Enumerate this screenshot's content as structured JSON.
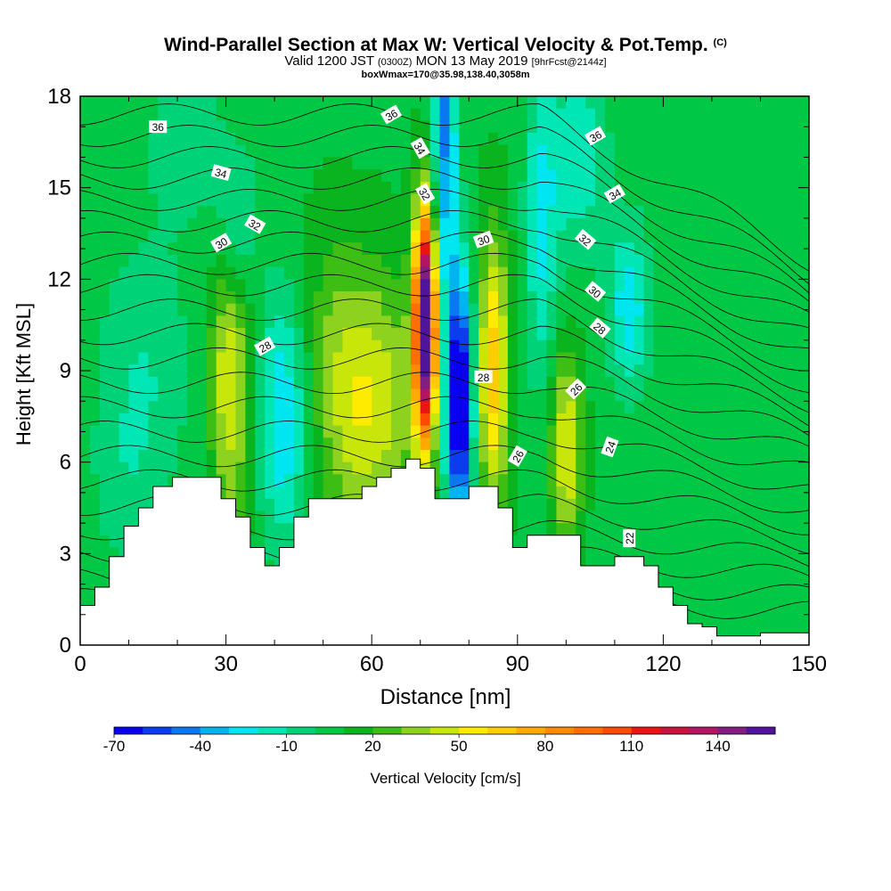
{
  "header": {
    "title": "Wind-Parallel Section at Max W: Vertical Velocity & Pot.Temp.",
    "title_mark": "(C)",
    "subtitle_a": "Valid 1200 JST",
    "subtitle_b": "(0300Z)",
    "subtitle_c": "MON 13 May 2019",
    "subtitle_d": "[9hrFcst@2144z]",
    "info": "boxWmax=170@35.98,138.40,3058m"
  },
  "chart_data": {
    "type": "heatmap",
    "xlabel": "Distance [nm]",
    "ylabel": "Height [Kft MSL]",
    "xlim": [
      0,
      150
    ],
    "ylim": [
      0,
      18
    ],
    "x_ticks": [
      "0",
      "30",
      "60",
      "90",
      "120",
      "150"
    ],
    "y_ticks": [
      "0",
      "3",
      "6",
      "9",
      "12",
      "15",
      "18"
    ],
    "colorbar": {
      "title": "Vertical Velocity [cm/s]",
      "labels": [
        "-70",
        "-40",
        "-10",
        "20",
        "50",
        "80",
        "110",
        "140"
      ],
      "levels": [
        -70,
        -60,
        -50,
        -40,
        -30,
        -20,
        -10,
        0,
        10,
        20,
        30,
        40,
        50,
        60,
        70,
        80,
        90,
        100,
        110,
        120,
        130,
        140,
        150
      ],
      "colors": [
        "#0a00f0",
        "#0a3cf0",
        "#0a78f0",
        "#00b4f0",
        "#00e6f0",
        "#00e6b4",
        "#00d278",
        "#00c845",
        "#0ab41e",
        "#3cbe14",
        "#8cd21e",
        "#c8e60a",
        "#ffeb00",
        "#ffcd00",
        "#ffaa00",
        "#ff8c00",
        "#ff6e00",
        "#ff4b00",
        "#eb1414",
        "#c8143c",
        "#b41464",
        "#821e82",
        "#50149b"
      ]
    },
    "terrain": [
      [
        0,
        1.3
      ],
      [
        3,
        1.3
      ],
      [
        3,
        1.9
      ],
      [
        6,
        1.9
      ],
      [
        6,
        2.9
      ],
      [
        9,
        2.9
      ],
      [
        9,
        3.9
      ],
      [
        12,
        3.9
      ],
      [
        12,
        4.5
      ],
      [
        15,
        4.5
      ],
      [
        15,
        5.2
      ],
      [
        19,
        5.2
      ],
      [
        19,
        5.5
      ],
      [
        29,
        5.5
      ],
      [
        29,
        4.8
      ],
      [
        32,
        4.8
      ],
      [
        32,
        4.2
      ],
      [
        35,
        4.2
      ],
      [
        35,
        3.2
      ],
      [
        38,
        3.2
      ],
      [
        38,
        2.6
      ],
      [
        41,
        2.6
      ],
      [
        41,
        3.2
      ],
      [
        44,
        3.2
      ],
      [
        44,
        4.2
      ],
      [
        47,
        4.2
      ],
      [
        47,
        4.8
      ],
      [
        58,
        4.8
      ],
      [
        58,
        5.2
      ],
      [
        61,
        5.2
      ],
      [
        61,
        5.5
      ],
      [
        64,
        5.5
      ],
      [
        64,
        5.8
      ],
      [
        67,
        5.8
      ],
      [
        67,
        6.1
      ],
      [
        70,
        6.1
      ],
      [
        70,
        5.8
      ],
      [
        73,
        5.8
      ],
      [
        73,
        4.8
      ],
      [
        80,
        4.8
      ],
      [
        80,
        5.2
      ],
      [
        86,
        5.2
      ],
      [
        86,
        4.5
      ],
      [
        89,
        4.5
      ],
      [
        89,
        3.2
      ],
      [
        92,
        3.2
      ],
      [
        92,
        3.6
      ],
      [
        103,
        3.6
      ],
      [
        103,
        2.6
      ],
      [
        110,
        2.6
      ],
      [
        110,
        2.9
      ],
      [
        116,
        2.9
      ],
      [
        116,
        2.6
      ],
      [
        119,
        2.6
      ],
      [
        119,
        1.9
      ],
      [
        122,
        1.9
      ],
      [
        122,
        1.3
      ],
      [
        125,
        1.3
      ],
      [
        125,
        0.7
      ],
      [
        128,
        0.7
      ],
      [
        128,
        0.6
      ],
      [
        131,
        0.6
      ],
      [
        131,
        0.3
      ],
      [
        140,
        0.3
      ],
      [
        140,
        0.4
      ],
      [
        150,
        0.4
      ],
      [
        150,
        0
      ]
    ],
    "contour_labels": [
      {
        "text": "36",
        "x": 16,
        "y": 17.0,
        "rot": 0
      },
      {
        "text": "36",
        "x": 64,
        "y": 17.4,
        "rot": -30
      },
      {
        "text": "36",
        "x": 106,
        "y": 16.7,
        "rot": -30
      },
      {
        "text": "34",
        "x": 29,
        "y": 15.5,
        "rot": 15
      },
      {
        "text": "34",
        "x": 70,
        "y": 16.3,
        "rot": 60
      },
      {
        "text": "34",
        "x": 110,
        "y": 14.8,
        "rot": -30
      },
      {
        "text": "32",
        "x": 36,
        "y": 13.8,
        "rot": 30
      },
      {
        "text": "32",
        "x": 71,
        "y": 14.8,
        "rot": 60
      },
      {
        "text": "32",
        "x": 104,
        "y": 13.3,
        "rot": 40
      },
      {
        "text": "30",
        "x": 29,
        "y": 13.2,
        "rot": -30
      },
      {
        "text": "30",
        "x": 83,
        "y": 13.3,
        "rot": -20
      },
      {
        "text": "30",
        "x": 106,
        "y": 11.6,
        "rot": 40
      },
      {
        "text": "28",
        "x": 38,
        "y": 9.8,
        "rot": -30
      },
      {
        "text": "28",
        "x": 83,
        "y": 8.8,
        "rot": 0
      },
      {
        "text": "28",
        "x": 107,
        "y": 10.4,
        "rot": 40
      },
      {
        "text": "26",
        "x": 102,
        "y": 8.4,
        "rot": -45
      },
      {
        "text": "26",
        "x": 90,
        "y": 6.2,
        "rot": -60
      },
      {
        "text": "24",
        "x": 109,
        "y": 6.5,
        "rot": -70
      },
      {
        "text": "22",
        "x": 113,
        "y": 3.5,
        "rot": -90
      }
    ]
  }
}
